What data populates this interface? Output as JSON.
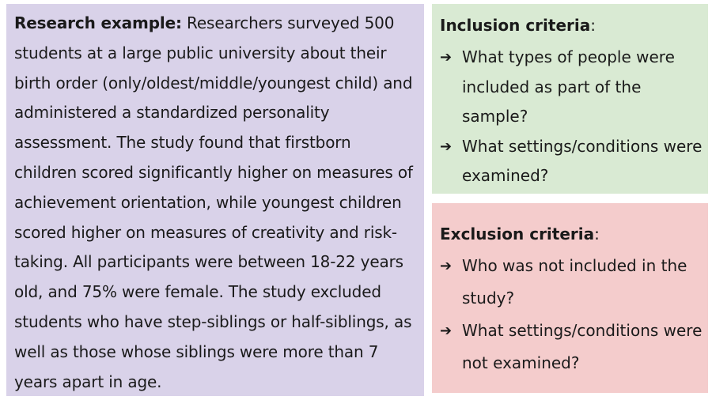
{
  "research": {
    "lead": "Research example:",
    "body": " Researchers surveyed 500 students at a large public university about their birth order (only/oldest/middle/youngest child) and administered a standardized personality assessment. The study found that firstborn children scored significantly higher on measures of achievement orientation, while youngest children scored higher on measures of creativity and risk-taking. All participants were between 18-22 years old, and 75% were female. The study excluded students who have step-siblings or half-siblings, as well as those whose siblings were more than 7 years apart in age."
  },
  "inclusion": {
    "title": "Inclusion criteria",
    "colon": ":",
    "items": [
      {
        "arrow": "➔",
        "text": "What types of people were included as part of the sample?"
      },
      {
        "arrow": "➔",
        "text": "What settings/conditions were examined?"
      }
    ]
  },
  "exclusion": {
    "title": "Exclusion criteria",
    "colon": ":",
    "items": [
      {
        "arrow": "➔",
        "text": "Who was not included in the study?"
      },
      {
        "arrow": "➔",
        "text": "What settings/conditions were not examined?"
      }
    ]
  },
  "colors": {
    "research_bg": "#d9d2e9",
    "inclusion_bg": "#d9ead3",
    "exclusion_bg": "#f4cccc"
  }
}
